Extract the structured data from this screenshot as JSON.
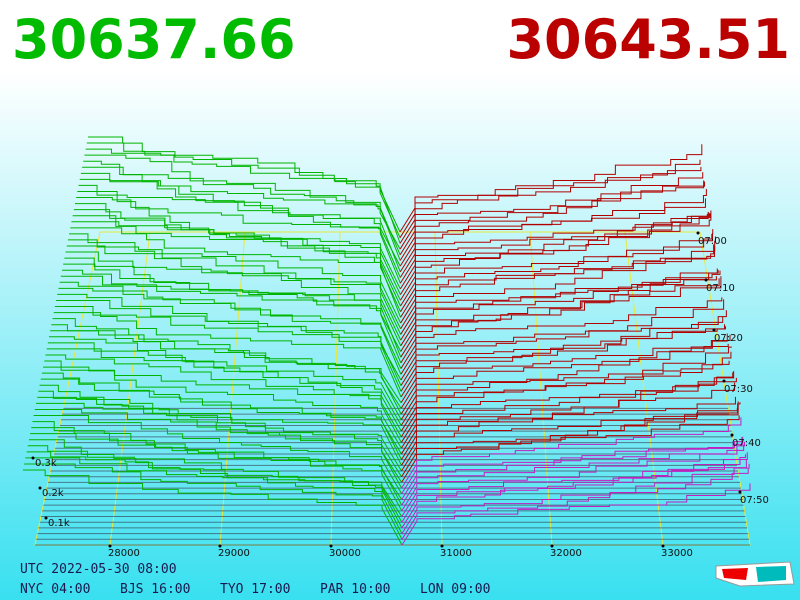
{
  "header": {
    "bid": "30637.66",
    "ask": "30643.51"
  },
  "price_axis": [
    "28000",
    "29000",
    "30000",
    "31000",
    "32000",
    "33000"
  ],
  "volume_axis": [
    "0.3k",
    "0.2k",
    "0.1k"
  ],
  "time_axis": [
    "07:00",
    "07:10",
    "07:20",
    "07:30",
    "07:40",
    "07:50"
  ],
  "footer": {
    "utc": "UTC 2022-05-30 08:00",
    "zones": [
      "NYC 04:00",
      "BJS 16:00",
      "TYO 17:00",
      "PAR 10:00",
      "LON 09:00"
    ]
  }
}
